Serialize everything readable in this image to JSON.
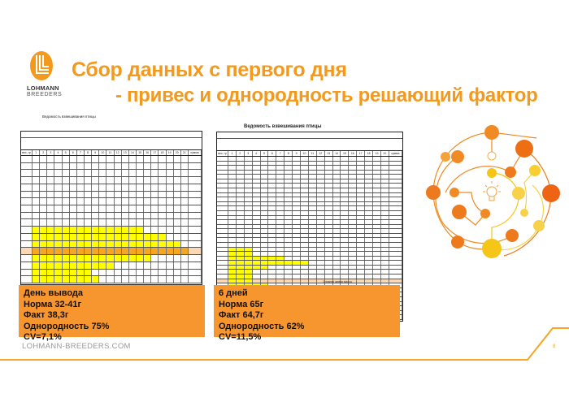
{
  "logo": {
    "line1": "LOHMANN",
    "line2": "BREEDERS"
  },
  "title": {
    "line1": "Сбор данных с первого дня",
    "line2": "- привес и однородность решающий фактор"
  },
  "sheet_left": {
    "title": "Ведомость взвешивания птицы",
    "weight_col": "вес, гр",
    "sum_col": "сумма",
    "columns": [
      "1",
      "2",
      "3",
      "4",
      "5",
      "6",
      "7",
      "8",
      "9",
      "10",
      "11",
      "12",
      "13",
      "14",
      "15",
      "16",
      "17",
      "18",
      "19",
      "20",
      "21"
    ]
  },
  "sheet_right": {
    "title": "Ведомость взвешивания птицы",
    "weight_col": "вес, гр",
    "sum_col": "сумма",
    "avg_label": "Средняя живая масса",
    "columns": [
      "1",
      "2",
      "3",
      "4",
      "5",
      "6",
      "7",
      "8",
      "9",
      "10",
      "11",
      "12",
      "13",
      "14",
      "15",
      "16",
      "17",
      "18",
      "19",
      "20"
    ]
  },
  "summary_left": {
    "lines": [
      "День вывода",
      "Норма 32-41г",
      "Факт 38,3г",
      "Однородность 75%",
      "CV=7,1%"
    ]
  },
  "summary_right": {
    "lines": [
      "6 дней",
      "Норма 65г",
      "Факт 64,7г",
      "Однородность 62%",
      "CV=11,5%"
    ]
  },
  "footer": {
    "website": "LOHMANN-BREEDERS.COM",
    "page_number": "8"
  },
  "colors": {
    "accent": "#F39A1E",
    "box": "#F7962F",
    "highlight": "#FFFF00",
    "highlight_avg": "#F5A623"
  }
}
